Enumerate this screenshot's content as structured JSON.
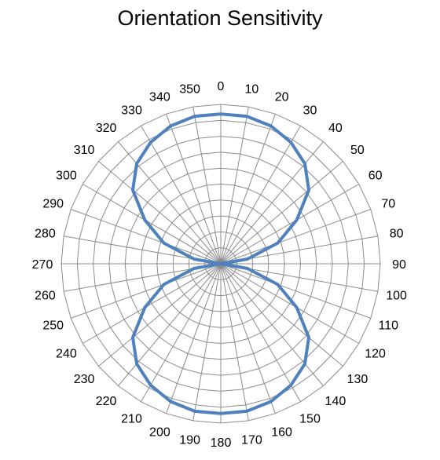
{
  "chart_data": {
    "type": "radar",
    "title": "Orientation Sensitivity",
    "angles": [
      0,
      10,
      20,
      30,
      40,
      50,
      60,
      70,
      80,
      90,
      100,
      110,
      120,
      130,
      140,
      150,
      160,
      170,
      180,
      190,
      200,
      210,
      220,
      230,
      240,
      250,
      260,
      270,
      280,
      290,
      300,
      310,
      320,
      330,
      340,
      350
    ],
    "tick_labels": [
      "0",
      "10",
      "20",
      "30",
      "40",
      "50",
      "60",
      "70",
      "80",
      "90",
      "100",
      "110",
      "120",
      "130",
      "140",
      "150",
      "160",
      "170",
      "180",
      "190",
      "200",
      "210",
      "220",
      "230",
      "240",
      "250",
      "260",
      "270",
      "280",
      "290",
      "300",
      "310",
      "320",
      "330",
      "340",
      "350"
    ],
    "series": [
      {
        "values": [
          0.94,
          0.94,
          0.92,
          0.88,
          0.82,
          0.72,
          0.55,
          0.38,
          0.17,
          0.0,
          0.17,
          0.38,
          0.55,
          0.72,
          0.82,
          0.88,
          0.92,
          0.94,
          0.94,
          0.94,
          0.92,
          0.88,
          0.82,
          0.72,
          0.55,
          0.38,
          0.17,
          0.0,
          0.17,
          0.38,
          0.55,
          0.72,
          0.82,
          0.88,
          0.92,
          0.94
        ],
        "color": "#4f81bd"
      }
    ],
    "rlim": [
      0,
      1
    ],
    "rings": 10,
    "grid": true,
    "gridColor": "#8c8c8c"
  }
}
